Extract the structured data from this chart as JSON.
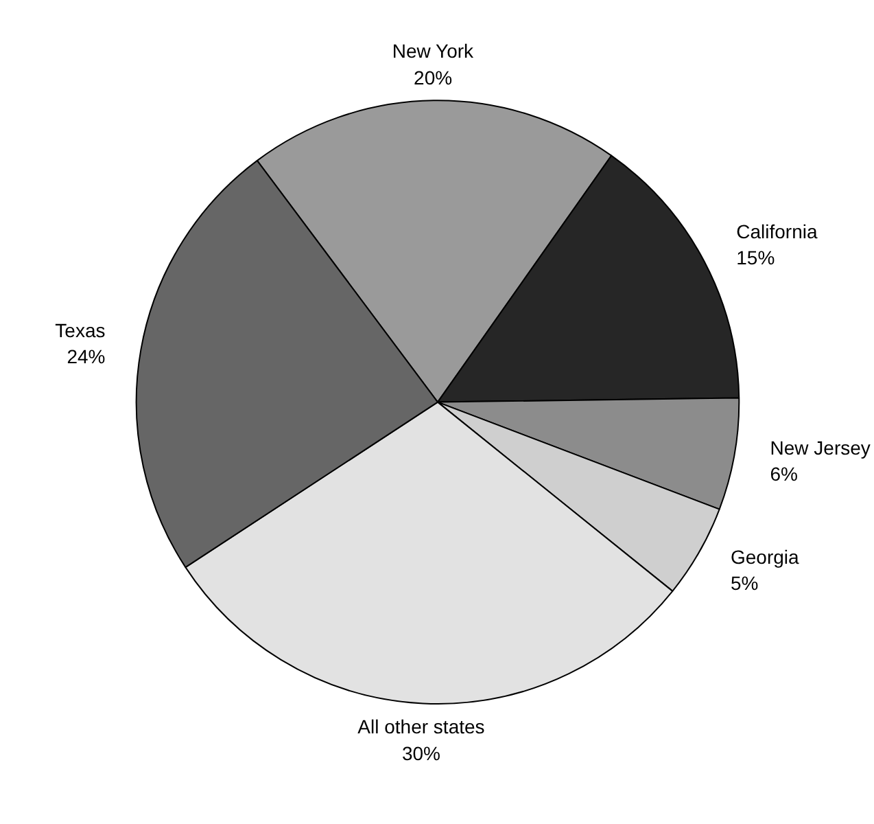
{
  "chart_data": {
    "type": "pie",
    "categories": [
      "New York",
      "California",
      "New Jersey",
      "Georgia",
      "All other states",
      "Texas"
    ],
    "values": [
      20,
      15,
      6,
      5,
      30,
      24
    ],
    "value_labels": [
      "20%",
      "15%",
      "6%",
      "5%",
      "30%",
      "24%"
    ],
    "colors": [
      "#9a9a9a",
      "#262626",
      "#8c8c8c",
      "#cfcfcf",
      "#e2e2e2",
      "#666666"
    ]
  }
}
